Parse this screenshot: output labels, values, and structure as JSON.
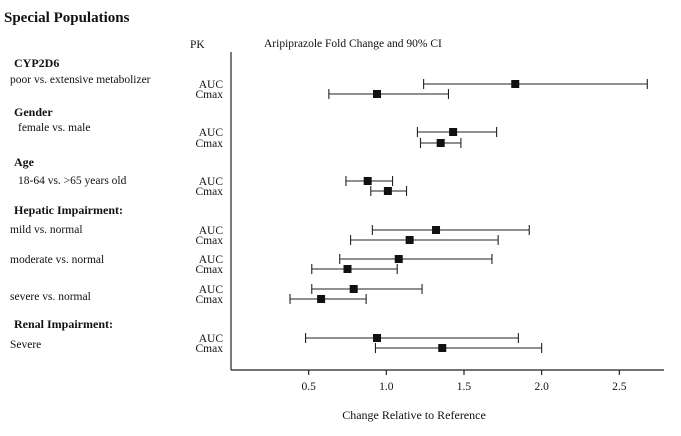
{
  "page": {
    "title": "Special Populations"
  },
  "chart_data": {
    "type": "forest",
    "title": "Aripiprazole Fold Change and 90% CI",
    "pk_column_header": "PK",
    "xlabel": "Change Relative to Reference",
    "xlim": [
      0.0,
      3.0
    ],
    "xticks": [
      "0.5",
      "1.0",
      "1.5",
      "2.0",
      "2.5",
      "3.0"
    ],
    "grid": false,
    "colors": {
      "axis": "#222222",
      "marker": "#111111"
    },
    "groups": [
      {
        "heading": "CYP2D6",
        "comparisons": [
          {
            "label": "poor vs. extensive metabolizer",
            "rows": [
              {
                "pk": "AUC",
                "estimate": 1.83,
                "ci": [
                  1.24,
                  2.68
                ]
              },
              {
                "pk": "Cmax",
                "estimate": 0.94,
                "ci": [
                  0.63,
                  1.4
                ]
              }
            ]
          }
        ]
      },
      {
        "heading": "Gender",
        "comparisons": [
          {
            "label": "female vs. male",
            "rows": [
              {
                "pk": "AUC",
                "estimate": 1.43,
                "ci": [
                  1.2,
                  1.71
                ]
              },
              {
                "pk": "Cmax",
                "estimate": 1.35,
                "ci": [
                  1.22,
                  1.48
                ]
              }
            ]
          }
        ]
      },
      {
        "heading": "Age",
        "comparisons": [
          {
            "label": "18-64 vs. >65 years old",
            "rows": [
              {
                "pk": "AUC",
                "estimate": 0.88,
                "ci": [
                  0.74,
                  1.04
                ]
              },
              {
                "pk": "Cmax",
                "estimate": 1.01,
                "ci": [
                  0.9,
                  1.13
                ]
              }
            ]
          }
        ]
      },
      {
        "heading": "Hepatic Impairment:",
        "comparisons": [
          {
            "label": "mild vs. normal",
            "rows": [
              {
                "pk": "AUC",
                "estimate": 1.32,
                "ci": [
                  0.91,
                  1.92
                ]
              },
              {
                "pk": "Cmax",
                "estimate": 1.15,
                "ci": [
                  0.77,
                  1.72
                ]
              }
            ]
          },
          {
            "label": "moderate vs. normal",
            "rows": [
              {
                "pk": "AUC",
                "estimate": 1.08,
                "ci": [
                  0.7,
                  1.68
                ]
              },
              {
                "pk": "Cmax",
                "estimate": 0.75,
                "ci": [
                  0.52,
                  1.07
                ]
              }
            ]
          },
          {
            "label": "severe vs. normal",
            "rows": [
              {
                "pk": "AUC",
                "estimate": 0.79,
                "ci": [
                  0.52,
                  1.23
                ]
              },
              {
                "pk": "Cmax",
                "estimate": 0.58,
                "ci": [
                  0.38,
                  0.87
                ]
              }
            ]
          }
        ]
      },
      {
        "heading": "Renal Impairment:",
        "comparisons": [
          {
            "label": "Severe",
            "rows": [
              {
                "pk": "AUC",
                "estimate": 0.94,
                "ci": [
                  0.48,
                  1.85
                ]
              },
              {
                "pk": "Cmax",
                "estimate": 1.36,
                "ci": [
                  0.93,
                  2.0
                ]
              }
            ]
          }
        ]
      }
    ]
  }
}
